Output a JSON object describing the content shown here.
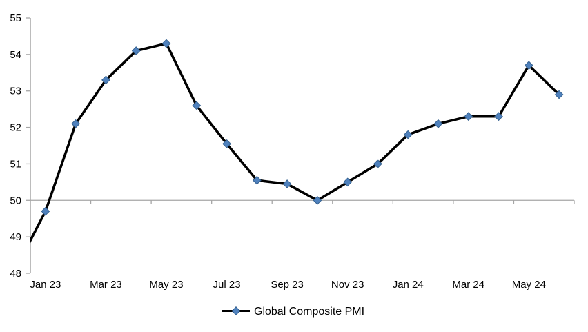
{
  "chart_data": {
    "type": "line",
    "title": "",
    "legend_position": "bottom",
    "categories": [
      "Dec 22",
      "Jan 23",
      "Feb 23",
      "Mar 23",
      "Apr 23",
      "May 23",
      "Jun 23",
      "Jul 23",
      "Aug 23",
      "Sep 23",
      "Oct 23",
      "Nov 23",
      "Dec 23",
      "Jan 24",
      "Feb 24",
      "Mar 24",
      "Apr 24",
      "May 24",
      "Jun 24"
    ],
    "series": [
      {
        "name": "Global Composite PMI",
        "values": [
          48.1,
          49.7,
          52.1,
          53.3,
          54.1,
          54.3,
          52.6,
          51.55,
          50.55,
          50.45,
          50.0,
          50.5,
          51.0,
          51.8,
          52.1,
          52.3,
          52.3,
          53.7,
          52.9
        ]
      }
    ],
    "ylim": [
      48,
      55
    ],
    "y_tick_step": 1,
    "y_tick_labels": [
      "48",
      "49",
      "50",
      "51",
      "52",
      "53",
      "54",
      "55"
    ],
    "x_tick_labels": [
      "Jan 23",
      "Mar 23",
      "May 23",
      "Jul 23",
      "Sep 23",
      "Nov 23",
      "Jan 24",
      "Mar 24",
      "May 24"
    ],
    "x_label_interval_months": 2,
    "axis_cross_y": 50,
    "grid": "none (horizontal category axis drawn at value 50, tick marks every 2 months)",
    "first_category_partially_clipped": true,
    "colors": {
      "line": "#000000",
      "marker_fill": "#4F81BD",
      "marker_stroke": "#35618F",
      "axis": "#A6A6A6",
      "text": "#000000"
    }
  }
}
